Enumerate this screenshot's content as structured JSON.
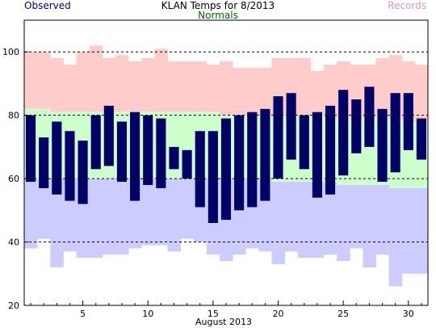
{
  "chart_data": {
    "type": "bar",
    "title": "KLAN Temps for 8/2013",
    "xlabel": "August 2013",
    "ylabel": "",
    "xlim": [
      0.5,
      31.5
    ],
    "ylim": [
      20,
      110
    ],
    "x_ticks": [
      5,
      10,
      15,
      20,
      25,
      30
    ],
    "y_ticks": [
      20,
      40,
      60,
      80,
      100
    ],
    "dashed_grid_y": [
      40,
      60,
      80,
      100
    ],
    "legend": [
      {
        "name": "Observed",
        "color": "#000066",
        "position": "top-left"
      },
      {
        "name": "Normals",
        "color": "#006600",
        "position": "top-center"
      },
      {
        "name": "Records",
        "color": "#cc99cc",
        "position": "top-right"
      }
    ],
    "days": [
      1,
      2,
      3,
      4,
      5,
      6,
      7,
      8,
      9,
      10,
      11,
      12,
      13,
      14,
      15,
      16,
      17,
      18,
      19,
      20,
      21,
      22,
      23,
      24,
      25,
      26,
      27,
      28,
      29,
      30,
      31
    ],
    "series": [
      {
        "name": "Records",
        "color": "#ffcccc",
        "kind": "record_high",
        "values": [
          100,
          100,
          98,
          96,
          100,
          102,
          98,
          99,
          97,
          98,
          101,
          97,
          97,
          97,
          96,
          97,
          95,
          95,
          95,
          98,
          98,
          98,
          94,
          96,
          97,
          96,
          96,
          98,
          99,
          97,
          96
        ]
      },
      {
        "name": "Records",
        "color": "#ccccff",
        "kind": "record_low",
        "values": [
          38,
          41,
          32,
          37,
          35,
          35,
          36,
          36,
          38,
          39,
          39,
          37,
          41,
          40,
          36,
          34,
          36,
          38,
          37,
          33,
          37,
          35,
          35,
          36,
          34,
          38,
          32,
          36,
          26,
          30,
          30
        ]
      },
      {
        "name": "Normals",
        "color": "#ccffcc",
        "kind": "normal_high",
        "values": [
          82,
          82,
          81,
          81,
          81,
          81,
          81,
          81,
          81,
          81,
          81,
          81,
          81,
          81,
          81,
          80,
          80,
          80,
          80,
          80,
          80,
          80,
          80,
          79,
          79,
          79,
          79,
          79,
          79,
          78,
          78
        ]
      },
      {
        "name": "Normals",
        "color": "#ccccff",
        "kind": "normal_low",
        "values": [
          60,
          60,
          60,
          60,
          60,
          60,
          60,
          60,
          60,
          60,
          60,
          60,
          60,
          60,
          60,
          60,
          60,
          60,
          60,
          59,
          59,
          59,
          59,
          59,
          58,
          58,
          58,
          58,
          57,
          57,
          57
        ]
      },
      {
        "name": "Observed",
        "color": "#000066",
        "kind": "observed_high",
        "values": [
          80,
          73,
          78,
          75,
          72,
          80,
          83,
          78,
          81,
          80,
          79,
          70,
          69,
          75,
          75,
          79,
          80,
          81,
          82,
          86,
          87,
          80,
          81,
          83,
          88,
          85,
          89,
          82,
          87,
          87,
          79
        ]
      },
      {
        "name": "Observed",
        "color": "#000066",
        "kind": "observed_low",
        "values": [
          59,
          57,
          55,
          53,
          52,
          63,
          64,
          59,
          53,
          58,
          57,
          63,
          60,
          51,
          46,
          47,
          50,
          51,
          53,
          60,
          66,
          63,
          54,
          55,
          61,
          68,
          70,
          59,
          62,
          69,
          66
        ]
      }
    ]
  }
}
